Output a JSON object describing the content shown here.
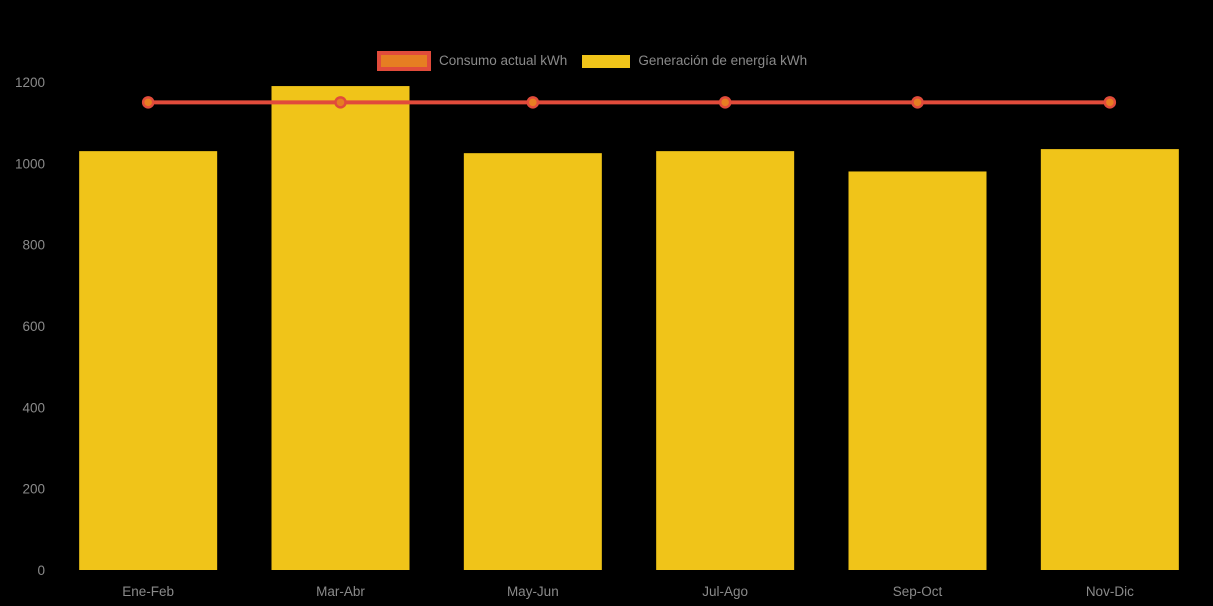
{
  "chart_data": {
    "type": "bar",
    "title": "",
    "xlabel": "",
    "ylabel": "",
    "categories": [
      "Ene-Feb",
      "Mar-Abr",
      "May-Jun",
      "Jul-Ago",
      "Sep-Oct",
      "Nov-Dic"
    ],
    "series": [
      {
        "name": "Consumo actual kWh",
        "type": "line",
        "values": [
          1150,
          1150,
          1150,
          1150,
          1150,
          1150
        ],
        "line_color": "#E14B3B",
        "marker_fill": "#E67E22",
        "marker_stroke": "#E14B3B"
      },
      {
        "name": "Generación de energía kWh",
        "type": "bar",
        "values": [
          1030,
          1190,
          1025,
          1030,
          980,
          1035
        ],
        "bar_color": "#F0C419"
      }
    ],
    "ylim": [
      0,
      1200
    ],
    "yticks": [
      0,
      200,
      400,
      600,
      800,
      1000,
      1200
    ],
    "grid": false,
    "legend_position": "top-center",
    "background_color": "#000000",
    "axis_text_color": "#8A8A8A",
    "legend_text_color": "#8A8A8A"
  }
}
